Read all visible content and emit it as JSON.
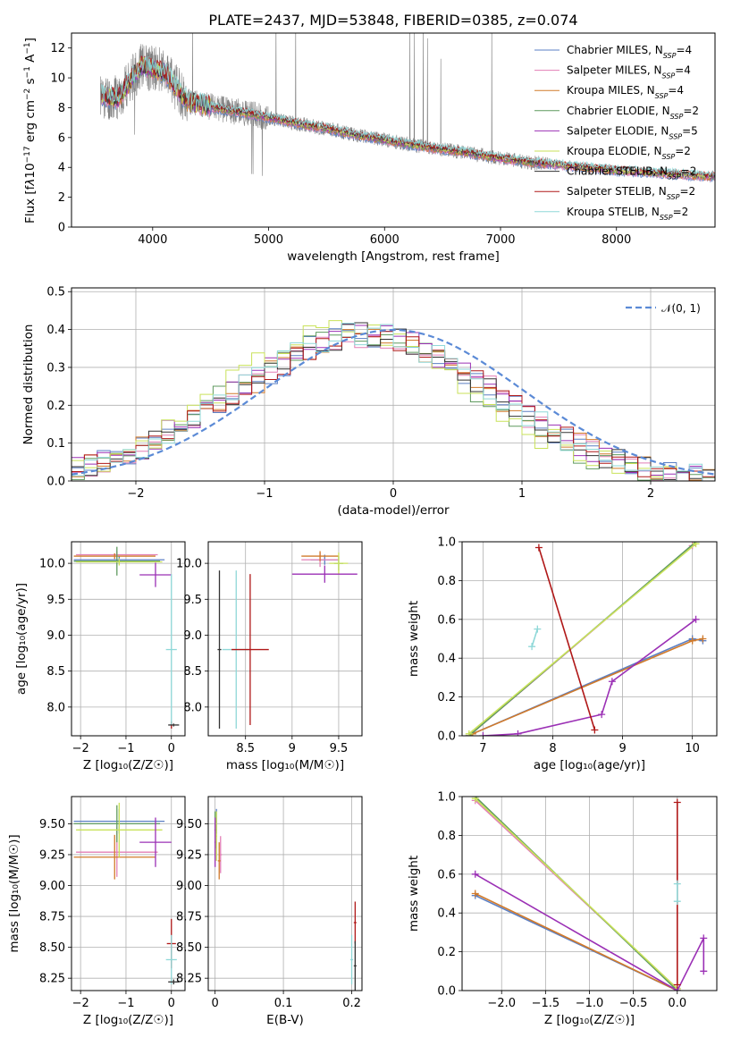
{
  "figure": {
    "title": "PLATE=2437, MJD=53848, FIBERID=0385, z=0.074"
  },
  "chart_data": [
    {
      "id": "spectrum",
      "type": "line",
      "xlabel": "wavelength [Angstrom, rest frame]",
      "ylabel_parts": [
        "Flux [f",
        "λ",
        "10",
        "−17",
        " erg cm",
        "−2",
        " s",
        "−1",
        " A",
        "−1",
        "]"
      ],
      "xlim": [
        3300,
        8850
      ],
      "ylim": [
        0,
        13
      ],
      "xticks": [
        4000,
        5000,
        6000,
        7000,
        8000
      ],
      "yticks": [
        0,
        2,
        4,
        6,
        8,
        10,
        12
      ],
      "legend": [
        {
          "name": "Chabrier MILES, N",
          "sub": "SSP",
          "tail": "=4",
          "color": "#5b7fc4"
        },
        {
          "name": "Salpeter MILES, N",
          "sub": "SSP",
          "tail": "=4",
          "color": "#e27fb6"
        },
        {
          "name": "Kroupa MILES, N",
          "sub": "SSP",
          "tail": "=4",
          "color": "#d17a2a"
        },
        {
          "name": "Chabrier ELODIE, N",
          "sub": "SSP",
          "tail": "=2",
          "color": "#5f9a5f"
        },
        {
          "name": "Salpeter ELODIE, N",
          "sub": "SSP",
          "tail": "=5",
          "color": "#9b30b5"
        },
        {
          "name": "Kroupa ELODIE, N",
          "sub": "SSP",
          "tail": "=2",
          "color": "#c9e25a"
        },
        {
          "name": "Chabrier STELIB, N",
          "sub": "SSP",
          "tail": "=2",
          "color": "#333333"
        },
        {
          "name": "Salpeter STELIB, N",
          "sub": "SSP",
          "tail": "=2",
          "color": "#b01818"
        },
        {
          "name": "Kroupa STELIB, N",
          "sub": "SSP",
          "tail": "=2",
          "color": "#8fd8d8"
        }
      ],
      "data_color": "#808080",
      "model_continuum": {
        "x": [
          3550,
          3700,
          3900,
          4100,
          4300,
          4600,
          4900,
          5200,
          5500,
          5800,
          6100,
          6400,
          6700,
          7000,
          7300,
          7600,
          8000,
          8400,
          8800
        ],
        "y": [
          8.8,
          8.6,
          10.8,
          10.4,
          8.4,
          7.9,
          7.5,
          7.0,
          6.6,
          6.1,
          5.7,
          5.3,
          5.0,
          4.6,
          4.3,
          4.1,
          3.8,
          3.6,
          3.4
        ]
      }
    },
    {
      "id": "residual-hist",
      "type": "step",
      "xlabel": "(data-model)/error",
      "ylabel": "Normed distribution",
      "xlim": [
        -2.5,
        2.5
      ],
      "ylim": [
        0,
        0.51
      ],
      "xticks": [
        -2,
        -1,
        0,
        1,
        2
      ],
      "yticks": [
        0.0,
        0.1,
        0.2,
        0.3,
        0.4,
        0.5
      ],
      "bin_width": 0.1,
      "gauss_label": "𝒩(0, 1)",
      "gauss_color": "#5b8ad6",
      "series": [
        {
          "color": "#5b7fc4",
          "shift": -0.22,
          "amp": 0.38,
          "sigma": 1.0,
          "seed": 1
        },
        {
          "color": "#e27fb6",
          "shift": -0.2,
          "amp": 0.385,
          "sigma": 1.0,
          "seed": 2
        },
        {
          "color": "#d17a2a",
          "shift": -0.21,
          "amp": 0.38,
          "sigma": 1.0,
          "seed": 3
        },
        {
          "color": "#5f9a5f",
          "shift": -0.3,
          "amp": 0.39,
          "sigma": 0.98,
          "seed": 4
        },
        {
          "color": "#9b30b5",
          "shift": -0.25,
          "amp": 0.39,
          "sigma": 1.0,
          "seed": 5
        },
        {
          "color": "#c9e25a",
          "shift": -0.35,
          "amp": 0.4,
          "sigma": 0.97,
          "seed": 6
        },
        {
          "color": "#333333",
          "shift": -0.24,
          "amp": 0.385,
          "sigma": 1.0,
          "seed": 7
        },
        {
          "color": "#b01818",
          "shift": -0.22,
          "amp": 0.385,
          "sigma": 1.0,
          "seed": 8
        },
        {
          "color": "#8fd8d8",
          "shift": -0.23,
          "amp": 0.385,
          "sigma": 1.0,
          "seed": 9
        }
      ]
    },
    {
      "id": "age-vs-z",
      "type": "errorbar",
      "xlabel": "Z [log₁₀(Z/Z☉)]",
      "ylabel": "age  [log₁₀(age/yr)]",
      "xlim": [
        -2.2,
        0.3
      ],
      "ylim": [
        7.6,
        10.3
      ],
      "xticks": [
        -2,
        -1,
        0
      ],
      "yticks": [
        8.0,
        8.5,
        9.0,
        9.5,
        10.0
      ],
      "points": [
        {
          "color": "#5b7fc4",
          "x": -1.15,
          "xerr": 1.0,
          "y": 10.05,
          "yerr": 0.05
        },
        {
          "color": "#e27fb6",
          "x": -1.2,
          "xerr": 0.9,
          "y": 10.12,
          "yerr": 0.05
        },
        {
          "color": "#d17a2a",
          "x": -1.25,
          "xerr": 0.9,
          "y": 10.1,
          "yerr": 0.04
        },
        {
          "color": "#5f9a5f",
          "x": -1.2,
          "xerr": 0.95,
          "y": 10.03,
          "yerr": 0.2
        },
        {
          "color": "#c9e25a",
          "x": -1.15,
          "xerr": 0.95,
          "y": 10.02,
          "yerr": 0.05
        },
        {
          "color": "#9b30b5",
          "x": -0.35,
          "xerr": 0.35,
          "y": 9.84,
          "yerr": 0.17
        },
        {
          "color": "#b01818",
          "x": 0.0,
          "xerr": 0.02,
          "y": 7.75,
          "yerr": 0.05
        },
        {
          "color": "#8fd8d8",
          "x": 0.0,
          "xerr": 0.12,
          "y": 8.8,
          "yerr": 1.05
        },
        {
          "color": "#333333",
          "x": 0.05,
          "xerr": 0.12,
          "y": 7.75,
          "yerr": 0.02
        }
      ]
    },
    {
      "id": "age-vs-mass",
      "type": "errorbar",
      "xlabel": "mass [log₁₀(M/M☉)]",
      "ylabel": "",
      "xlim": [
        8.1,
        9.75
      ],
      "ylim": [
        7.6,
        10.3
      ],
      "xticks": [
        8.5,
        9.0,
        9.5
      ],
      "yticks": [
        8.0,
        8.5,
        9.0,
        9.5,
        10.0
      ],
      "points": [
        {
          "color": "#333333",
          "x": 8.22,
          "xerr": 0.02,
          "y": 8.8,
          "yerr": 1.1
        },
        {
          "color": "#8fd8d8",
          "x": 8.4,
          "xerr": 0.15,
          "y": 8.8,
          "yerr": 1.1
        },
        {
          "color": "#b01818",
          "x": 8.55,
          "xerr": 0.2,
          "y": 8.8,
          "yerr": 1.05
        },
        {
          "color": "#5b7fc4",
          "x": 9.35,
          "xerr": 0.15,
          "y": 10.05,
          "yerr": 0.07
        },
        {
          "color": "#e27fb6",
          "x": 9.3,
          "xerr": 0.2,
          "y": 10.05,
          "yerr": 0.1
        },
        {
          "color": "#d17a2a",
          "x": 9.3,
          "xerr": 0.2,
          "y": 10.1,
          "yerr": 0.07
        },
        {
          "color": "#5f9a5f",
          "x": 9.5,
          "xerr": 0.05,
          "y": 10.0,
          "yerr": 0.1
        },
        {
          "color": "#c9e25a",
          "x": 9.5,
          "xerr": 0.1,
          "y": 10.0,
          "yerr": 0.15
        },
        {
          "color": "#9b30b5",
          "x": 9.35,
          "xerr": 0.35,
          "y": 9.85,
          "yerr": 0.12
        }
      ]
    },
    {
      "id": "mass-weight-vs-age",
      "type": "line",
      "xlabel": "age  [log₁₀(age/yr)]",
      "ylabel": "mass weight",
      "xlim": [
        6.7,
        10.35
      ],
      "ylim": [
        0,
        1
      ],
      "xticks": [
        7,
        8,
        9,
        10
      ],
      "yticks": [
        0.0,
        0.2,
        0.4,
        0.6,
        0.8,
        1.0
      ],
      "series": [
        {
          "color": "#5b7fc4",
          "x": [
            6.8,
            6.85,
            10.0,
            10.15
          ],
          "y": [
            0.0,
            0.01,
            0.5,
            0.49
          ]
        },
        {
          "color": "#e27fb6",
          "x": [
            6.8,
            10.0
          ],
          "y": [
            0.0,
            0.98
          ]
        },
        {
          "color": "#d17a2a",
          "x": [
            6.8,
            6.85,
            10.0,
            10.15
          ],
          "y": [
            0.0,
            0.01,
            0.49,
            0.5
          ]
        },
        {
          "color": "#5f9a5f",
          "x": [
            6.8,
            10.05
          ],
          "y": [
            0.0,
            1.0
          ]
        },
        {
          "color": "#c9e25a",
          "x": [
            6.8,
            10.05
          ],
          "y": [
            0.01,
            0.99
          ]
        },
        {
          "color": "#9b30b5",
          "x": [
            7.0,
            7.5,
            8.7,
            8.85,
            10.05
          ],
          "y": [
            0.0,
            0.01,
            0.11,
            0.28,
            0.6
          ]
        },
        {
          "color": "#b01818",
          "x": [
            7.8,
            8.6
          ],
          "y": [
            0.97,
            0.03
          ]
        },
        {
          "color": "#8fd8d8",
          "x": [
            7.7,
            7.78
          ],
          "y": [
            0.46,
            0.55
          ]
        }
      ]
    },
    {
      "id": "mass-vs-z",
      "type": "errorbar",
      "xlabel": "Z [log₁₀(Z/Z☉)]",
      "ylabel": "mass [log₁₀(M/M☉)]",
      "xlim": [
        -2.2,
        0.3
      ],
      "ylim": [
        8.15,
        9.72
      ],
      "xticks": [
        -2,
        -1,
        0
      ],
      "yticks": [
        8.25,
        8.5,
        8.75,
        9.0,
        9.25,
        9.5
      ],
      "points": [
        {
          "color": "#5b7fc4",
          "x": -1.15,
          "xerr": 1.0,
          "y": 9.52,
          "yerr": 0.1
        },
        {
          "color": "#e27fb6",
          "x": -1.2,
          "xerr": 0.9,
          "y": 9.27,
          "yerr": 0.2
        },
        {
          "color": "#d17a2a",
          "x": -1.25,
          "xerr": 0.9,
          "y": 9.23,
          "yerr": 0.18
        },
        {
          "color": "#5f9a5f",
          "x": -1.2,
          "xerr": 0.95,
          "y": 9.5,
          "yerr": 0.15
        },
        {
          "color": "#c9e25a",
          "x": -1.15,
          "xerr": 0.95,
          "y": 9.45,
          "yerr": 0.22
        },
        {
          "color": "#9b30b5",
          "x": -0.35,
          "xerr": 0.35,
          "y": 9.35,
          "yerr": 0.2
        },
        {
          "color": "#b01818",
          "x": 0.0,
          "xerr": 0.1,
          "y": 8.53,
          "yerr": 0.2
        },
        {
          "color": "#8fd8d8",
          "x": 0.0,
          "xerr": 0.12,
          "y": 8.4,
          "yerr": 0.2
        },
        {
          "color": "#333333",
          "x": 0.05,
          "xerr": 0.12,
          "y": 8.22,
          "yerr": 0.02
        }
      ]
    },
    {
      "id": "mass-vs-ebv",
      "type": "errorbar",
      "xlabel": "E(B-V)",
      "ylabel": "",
      "xlim": [
        -0.01,
        0.215
      ],
      "ylim": [
        8.15,
        9.72
      ],
      "xticks": [
        0.0,
        0.1,
        0.2
      ],
      "yticks": [
        8.25,
        8.5,
        8.75,
        9.0,
        9.25,
        9.5
      ],
      "points": [
        {
          "color": "#5b7fc4",
          "x": 0.002,
          "xerr": 0.001,
          "y": 9.52,
          "yerr": 0.1
        },
        {
          "color": "#e27fb6",
          "x": 0.008,
          "xerr": 0.002,
          "y": 9.25,
          "yerr": 0.15
        },
        {
          "color": "#d17a2a",
          "x": 0.006,
          "xerr": 0.002,
          "y": 9.2,
          "yerr": 0.15
        },
        {
          "color": "#5f9a5f",
          "x": 0.0,
          "xerr": 0.001,
          "y": 9.45,
          "yerr": 0.15
        },
        {
          "color": "#c9e25a",
          "x": 0.002,
          "xerr": 0.001,
          "y": 9.4,
          "yerr": 0.2
        },
        {
          "color": "#9b30b5",
          "x": 0.0,
          "xerr": 0.001,
          "y": 9.35,
          "yerr": 0.2
        },
        {
          "color": "#b01818",
          "x": 0.205,
          "xerr": 0.002,
          "y": 8.7,
          "yerr": 0.17
        },
        {
          "color": "#8fd8d8",
          "x": 0.2,
          "xerr": 0.002,
          "y": 8.4,
          "yerr": 0.2
        },
        {
          "color": "#333333",
          "x": 0.205,
          "xerr": 0.002,
          "y": 8.35,
          "yerr": 0.2
        }
      ]
    },
    {
      "id": "mass-weight-vs-z",
      "type": "line",
      "xlabel": "Z [log₁₀(Z/Z☉)]",
      "ylabel": "mass weight",
      "xlim": [
        -2.45,
        0.45
      ],
      "ylim": [
        0,
        1
      ],
      "xticks": [
        -2.0,
        -1.5,
        -1.0,
        -0.5,
        0.0
      ],
      "xtick_labels": [
        "−2.0",
        "−1.5",
        "−1.0",
        "−0.5",
        "0.0"
      ],
      "yticks": [
        0.0,
        0.2,
        0.4,
        0.6,
        0.8,
        1.0
      ],
      "series": [
        {
          "color": "#5b7fc4",
          "x": [
            -2.3,
            0.0
          ],
          "y": [
            0.49,
            0.0
          ]
        },
        {
          "color": "#e27fb6",
          "x": [
            -2.3,
            0.0
          ],
          "y": [
            0.98,
            0.01
          ]
        },
        {
          "color": "#d17a2a",
          "x": [
            -2.3,
            0.0
          ],
          "y": [
            0.5,
            0.0
          ]
        },
        {
          "color": "#5f9a5f",
          "x": [
            -2.3,
            0.0
          ],
          "y": [
            1.0,
            0.0
          ]
        },
        {
          "color": "#c9e25a",
          "x": [
            -2.3,
            0.0
          ],
          "y": [
            0.99,
            0.01
          ]
        },
        {
          "color": "#9b30b5",
          "x": [
            -2.3,
            0.0,
            0.3,
            0.3
          ],
          "y": [
            0.6,
            0.0,
            0.27,
            0.1
          ]
        },
        {
          "color": "#b01818",
          "x": [
            0.0,
            0.0
          ],
          "y": [
            0.97,
            0.03
          ]
        },
        {
          "color": "#8fd8d8",
          "x": [
            0.0,
            0.0
          ],
          "y": [
            0.55,
            0.46
          ]
        }
      ]
    }
  ]
}
